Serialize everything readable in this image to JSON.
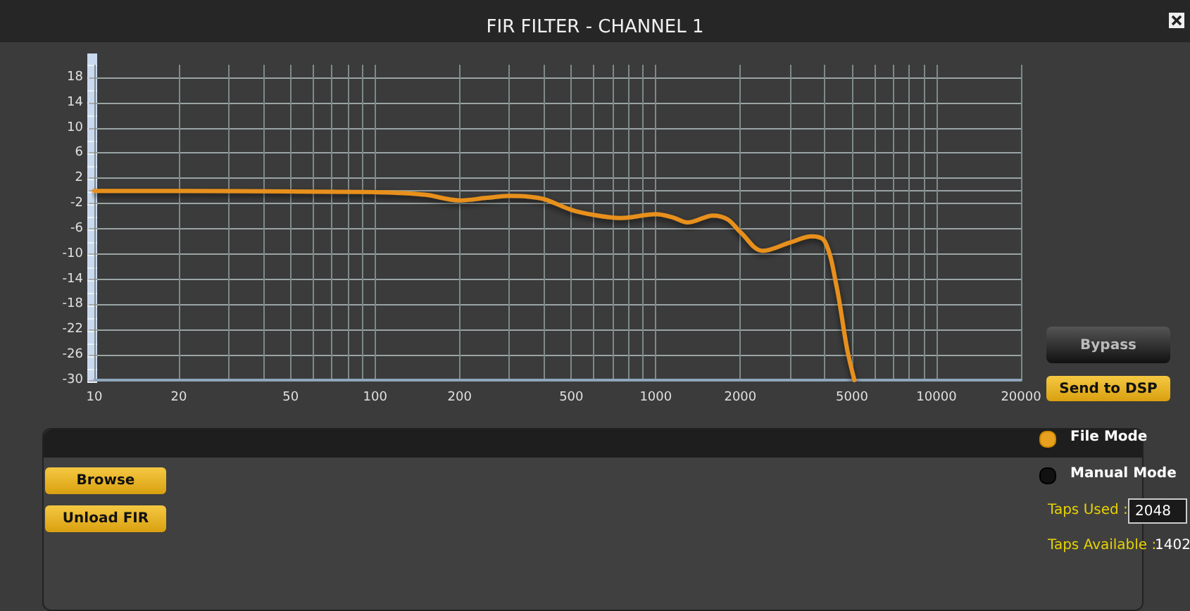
{
  "chart_data": [
    {
      "type": "line",
      "title": "FIR FILTER - CHANNEL 1",
      "x": [
        10,
        20,
        50,
        100,
        150,
        200,
        250,
        300,
        350,
        400,
        500,
        600,
        750,
        1000,
        1150,
        1300,
        1600,
        1800,
        2000,
        2400,
        3000,
        3600,
        4000,
        4400,
        4800,
        5100
      ],
      "series": [
        {
          "color": "#e8901a",
          "values": [
            0,
            0,
            -0.1,
            -0.2,
            -0.6,
            -1.5,
            -1.1,
            -0.8,
            -0.9,
            -1.3,
            -3,
            -3.8,
            -4.3,
            -3.7,
            -4.2,
            -5,
            -3.9,
            -4.5,
            -6.5,
            -9.5,
            -8.2,
            -7.2,
            -8,
            -15,
            -25,
            -30
          ]
        }
      ],
      "log": "x",
      "xlim": [
        10,
        20000
      ],
      "ylim": [
        -30,
        20
      ],
      "xticks": [
        10,
        20,
        {
          "value": 30,
          "label": null
        },
        {
          "value": 40,
          "label": null
        },
        50,
        {
          "value": 60,
          "label": null
        },
        {
          "value": 70,
          "label": null
        },
        {
          "value": 80,
          "label": null
        },
        {
          "value": 90,
          "label": null
        },
        100,
        200,
        {
          "value": 300,
          "label": null
        },
        {
          "value": 400,
          "label": null
        },
        500,
        {
          "value": 600,
          "label": null
        },
        {
          "value": 700,
          "label": null
        },
        {
          "value": 800,
          "label": null
        },
        {
          "value": 900,
          "label": null
        },
        1000,
        2000,
        {
          "value": 3000,
          "label": null
        },
        {
          "value": 4000,
          "label": null
        },
        5000,
        {
          "value": 6000,
          "label": null
        },
        {
          "value": 7000,
          "label": null
        },
        {
          "value": 8000,
          "label": null
        },
        {
          "value": 9000,
          "label": null
        },
        10000,
        20000
      ],
      "yticks": [
        -30,
        -26,
        -22,
        -18,
        -14,
        -10,
        -6,
        -2,
        {
          "value": 0,
          "label": null
        },
        2,
        6,
        10,
        14,
        18
      ],
      "grid": true,
      "marker": "none",
      "line_style": "solid"
    },
    {
      "type": "other",
      "annotations": [
        "Bypass",
        "Send to DSP",
        "Browse",
        "Unload FIR",
        "File Mode",
        "Manual Mode",
        "Taps Used :",
        "2048",
        "Taps Available :",
        "1402"
      ]
    }
  ]
}
